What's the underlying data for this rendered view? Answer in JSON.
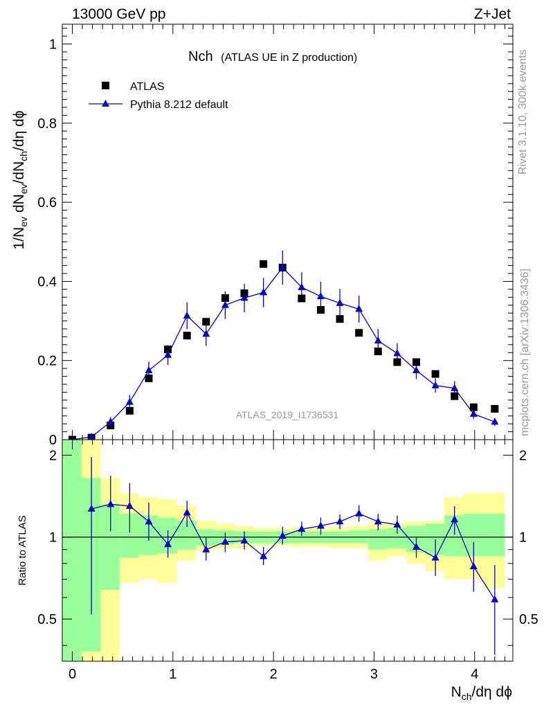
{
  "header": {
    "left": "13000 GeV pp",
    "right": "Z+Jet"
  },
  "side": {
    "rivet": "Rivet 3.1.10,  300k events",
    "mcplots": "mcplots.cern.ch [arXiv:1306.3436]"
  },
  "chart_data": [
    {
      "type": "scatter",
      "title": "Nch",
      "subtitle": "(ATLAS UE in Z production)",
      "analysis_tag": "ATLAS_2019_I1736531",
      "xlabel": "N",
      "xlabel_sub": "ch",
      "xlabel_tail": "/dη dϕ",
      "ylabel": "1/N",
      "ylabel_sub1": "ev",
      "ylabel_mid1": " dN",
      "ylabel_sub2": "ev",
      "ylabel_mid2": "/dN",
      "ylabel_sub3": "ch",
      "ylabel_tail": "/dη dϕ",
      "xlim": [
        -0.1,
        4.38
      ],
      "ylim": [
        0,
        1.05
      ],
      "xticks": [
        "0",
        "1",
        "2",
        "3",
        "4"
      ],
      "yticks": [
        "0",
        "0.2",
        "0.4",
        "0.6",
        "0.8",
        "1"
      ],
      "legend_position": "top-left",
      "series": [
        {
          "name": "ATLAS",
          "marker": "square",
          "color": "#000000",
          "x": [
            0.0,
            0.19,
            0.38,
            0.57,
            0.76,
            0.95,
            1.14,
            1.33,
            1.52,
            1.71,
            1.9,
            2.09,
            2.28,
            2.47,
            2.66,
            2.85,
            3.04,
            3.23,
            3.42,
            3.61,
            3.8,
            3.99,
            4.2
          ],
          "y": [
            0.0,
            0.005,
            0.036,
            0.073,
            0.155,
            0.228,
            0.263,
            0.298,
            0.358,
            0.37,
            0.444,
            0.435,
            0.357,
            0.328,
            0.305,
            0.27,
            0.223,
            0.196,
            0.196,
            0.166,
            0.11,
            0.082,
            0.078
          ]
        },
        {
          "name": "Pythia 8.212 default",
          "marker": "triangle",
          "color": "#0000cc",
          "x": [
            0.0,
            0.19,
            0.38,
            0.57,
            0.76,
            0.95,
            1.14,
            1.33,
            1.52,
            1.71,
            1.9,
            2.09,
            2.28,
            2.47,
            2.66,
            2.85,
            3.04,
            3.23,
            3.42,
            3.61,
            3.8,
            3.99,
            4.2
          ],
          "y": [
            0.0,
            0.007,
            0.045,
            0.095,
            0.175,
            0.214,
            0.313,
            0.267,
            0.34,
            0.358,
            0.372,
            0.435,
            0.385,
            0.362,
            0.345,
            0.33,
            0.25,
            0.218,
            0.175,
            0.137,
            0.13,
            0.065,
            0.045
          ],
          "yerr": [
            0.0,
            0.004,
            0.012,
            0.018,
            0.022,
            0.025,
            0.034,
            0.03,
            0.035,
            0.036,
            0.037,
            0.043,
            0.038,
            0.037,
            0.036,
            0.034,
            0.03,
            0.026,
            0.022,
            0.018,
            0.018,
            0.012,
            0.01
          ]
        }
      ]
    },
    {
      "type": "scatter",
      "ylabel": "Ratio to ATLAS",
      "ylim": [
        0.35,
        2.28
      ],
      "yticks": [
        "0.5",
        "1",
        "2"
      ],
      "reference_line": 1,
      "band_colors": {
        "inner": "#99ff99",
        "outer": "#ffff99"
      },
      "bands": {
        "x_edges": [
          -0.1,
          0.09,
          0.28,
          0.47,
          0.66,
          0.85,
          1.04,
          1.23,
          1.42,
          1.61,
          1.8,
          1.99,
          2.18,
          2.37,
          2.56,
          2.75,
          2.94,
          3.13,
          3.32,
          3.51,
          3.7,
          3.89,
          4.08,
          4.3
        ],
        "outer_lo": [
          0.35,
          0.35,
          0.35,
          0.68,
          0.7,
          0.68,
          0.82,
          0.89,
          0.91,
          0.91,
          0.93,
          0.93,
          0.92,
          0.92,
          0.91,
          0.91,
          0.82,
          0.85,
          0.8,
          0.75,
          0.7,
          0.7,
          0.65
        ],
        "outer_hi": [
          2.28,
          2.28,
          1.65,
          1.45,
          1.4,
          1.38,
          1.3,
          1.15,
          1.12,
          1.1,
          1.08,
          1.08,
          1.08,
          1.08,
          1.09,
          1.1,
          1.12,
          1.12,
          1.14,
          1.15,
          1.4,
          1.45,
          1.45
        ],
        "inner_lo": [
          0.35,
          0.38,
          0.64,
          0.84,
          0.86,
          0.87,
          0.9,
          0.93,
          0.94,
          0.95,
          0.95,
          0.95,
          0.95,
          0.95,
          0.95,
          0.95,
          0.9,
          0.91,
          0.88,
          0.86,
          0.85,
          0.85,
          0.85
        ],
        "inner_hi": [
          2.28,
          1.65,
          1.32,
          1.22,
          1.2,
          1.18,
          1.15,
          1.07,
          1.06,
          1.05,
          1.05,
          1.05,
          1.05,
          1.05,
          1.05,
          1.06,
          1.07,
          1.08,
          1.1,
          1.12,
          1.2,
          1.22,
          1.22
        ]
      },
      "series": [
        {
          "name": "Pythia 8.212 default / ATLAS",
          "marker": "triangle",
          "color": "#0000cc",
          "x": [
            0.19,
            0.38,
            0.57,
            0.76,
            0.95,
            1.14,
            1.33,
            1.52,
            1.71,
            1.9,
            2.09,
            2.28,
            2.47,
            2.66,
            2.85,
            3.04,
            3.23,
            3.42,
            3.61,
            3.8,
            3.99,
            4.2
          ],
          "y": [
            1.27,
            1.32,
            1.3,
            1.14,
            0.94,
            1.23,
            0.9,
            0.96,
            0.97,
            0.85,
            1.01,
            1.07,
            1.1,
            1.14,
            1.22,
            1.14,
            1.11,
            0.92,
            0.84,
            1.16,
            0.78,
            0.59
          ],
          "ylo": [
            0.52,
            1.05,
            1.04,
            0.97,
            0.84,
            1.09,
            0.82,
            0.88,
            0.9,
            0.79,
            0.94,
            1.01,
            1.02,
            1.07,
            1.14,
            1.06,
            1.03,
            0.84,
            0.72,
            1.02,
            0.63,
            0.37
          ],
          "yhi": [
            1.97,
            1.68,
            1.58,
            1.34,
            1.06,
            1.36,
            1.0,
            1.04,
            1.05,
            0.92,
            1.09,
            1.14,
            1.18,
            1.21,
            1.31,
            1.22,
            1.2,
            1.0,
            0.98,
            1.3,
            0.96,
            0.79
          ]
        }
      ]
    }
  ]
}
